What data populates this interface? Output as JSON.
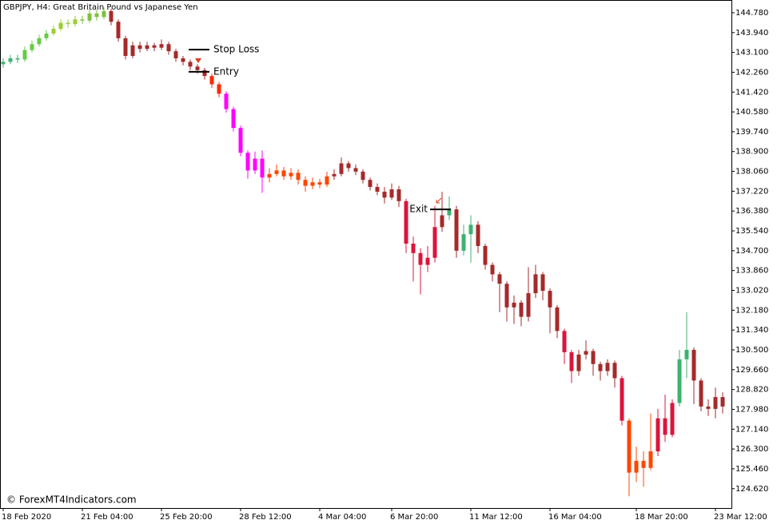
{
  "chart_data": {
    "type": "candlestick",
    "title": "GBPJPY, H4:  Great Britain Pound vs Japanese Yen",
    "watermark": "© ForexMT4Indicators.com",
    "ylim": [
      123.8,
      145.32
    ],
    "yticks": [
      {
        "value": 144.78,
        "label": "144.780"
      },
      {
        "value": 143.94,
        "label": "143.940"
      },
      {
        "value": 143.1,
        "label": "143.100"
      },
      {
        "value": 142.26,
        "label": "142.260"
      },
      {
        "value": 141.42,
        "label": "141.420"
      },
      {
        "value": 140.58,
        "label": "140.580"
      },
      {
        "value": 139.74,
        "label": "139.740"
      },
      {
        "value": 138.9,
        "label": "138.900"
      },
      {
        "value": 138.06,
        "label": "138.060"
      },
      {
        "value": 137.22,
        "label": "137.220"
      },
      {
        "value": 136.38,
        "label": "136.380"
      },
      {
        "value": 135.54,
        "label": "135.540"
      },
      {
        "value": 134.7,
        "label": "134.700"
      },
      {
        "value": 133.86,
        "label": "133.860"
      },
      {
        "value": 133.02,
        "label": "133.020"
      },
      {
        "value": 132.18,
        "label": "132.180"
      },
      {
        "value": 131.34,
        "label": "131.340"
      },
      {
        "value": 130.5,
        "label": "130.500"
      },
      {
        "value": 129.66,
        "label": "129.660"
      },
      {
        "value": 128.82,
        "label": "128.820"
      },
      {
        "value": 127.98,
        "label": "127.980"
      },
      {
        "value": 127.14,
        "label": "127.140"
      },
      {
        "value": 126.3,
        "label": "126.300"
      },
      {
        "value": 125.46,
        "label": "125.460"
      },
      {
        "value": 124.62,
        "label": "124.620"
      }
    ],
    "categories": [
      "18 Feb 2020",
      null,
      null,
      null,
      null,
      null,
      null,
      null,
      null,
      null,
      null,
      "21 Feb 04:00",
      null,
      null,
      null,
      null,
      null,
      null,
      null,
      null,
      null,
      null,
      "25 Feb 20:00",
      null,
      null,
      null,
      null,
      null,
      null,
      null,
      null,
      null,
      null,
      "28 Feb 12:00",
      null,
      null,
      null,
      null,
      null,
      null,
      null,
      null,
      null,
      null,
      "4 Mar 04:00",
      null,
      null,
      null,
      null,
      null,
      null,
      null,
      null,
      null,
      "6 Mar 20:00",
      null,
      null,
      null,
      null,
      null,
      null,
      null,
      null,
      null,
      null,
      "11 Mar 12:00",
      null,
      null,
      null,
      null,
      null,
      null,
      null,
      null,
      null,
      null,
      "16 Mar 04:00",
      null,
      null,
      null,
      null,
      null,
      null,
      null,
      null,
      null,
      null,
      null,
      "18 Mar 20:00",
      null,
      null,
      null,
      null,
      null,
      null,
      null,
      null,
      null,
      null,
      "23 Mar 12:00",
      null
    ],
    "open": [
      142.6,
      142.7,
      142.85,
      142.8,
      143.2,
      143.45,
      143.7,
      143.9,
      144.1,
      144.35,
      144.3,
      144.5,
      144.45,
      144.75,
      144.6,
      144.85,
      144.4,
      143.7,
      142.95,
      143.4,
      143.25,
      143.4,
      143.3,
      143.45,
      143.15,
      142.85,
      142.7,
      142.5,
      142.35,
      142.1,
      141.75,
      141.35,
      140.7,
      139.9,
      138.85,
      138.1,
      138.6,
      137.8,
      137.95,
      138.1,
      137.85,
      138.0,
      137.7,
      137.45,
      137.6,
      137.5,
      137.85,
      137.95,
      138.4,
      138.2,
      138.05,
      137.7,
      137.4,
      137.2,
      136.95,
      137.3,
      136.8,
      135.0,
      134.6,
      134.1,
      134.4,
      135.7,
      136.2,
      136.45,
      134.7,
      135.4,
      135.8,
      134.9,
      134.1,
      133.7,
      133.3,
      132.3,
      132.5,
      131.9,
      132.9,
      133.7,
      133.0,
      132.3,
      131.3,
      130.4,
      129.6,
      130.3,
      130.45,
      129.9,
      129.6,
      129.95,
      129.3,
      127.5,
      125.3,
      125.8,
      125.5,
      126.2,
      127.6,
      126.9,
      128.25,
      130.1,
      130.5,
      129.2,
      128.1,
      128.0,
      128.5
    ],
    "high": [
      142.85,
      143.0,
      143.0,
      143.35,
      143.6,
      143.85,
      144.05,
      144.25,
      144.5,
      144.5,
      144.65,
      144.65,
      144.95,
      144.9,
      145.0,
      144.95,
      144.5,
      143.8,
      143.55,
      143.55,
      143.55,
      143.5,
      143.65,
      143.55,
      143.25,
      142.95,
      142.8,
      142.6,
      142.45,
      142.2,
      141.85,
      141.45,
      140.8,
      140.0,
      138.95,
      138.9,
      138.95,
      138.2,
      138.35,
      138.25,
      138.2,
      138.15,
      137.85,
      137.8,
      137.75,
      138.05,
      138.15,
      138.65,
      138.5,
      138.35,
      138.15,
      137.8,
      137.55,
      137.4,
      137.55,
      137.45,
      136.9,
      135.3,
      134.8,
      134.9,
      136.6,
      137.2,
      137.0,
      136.6,
      135.8,
      136.2,
      135.95,
      135.0,
      134.2,
      133.8,
      133.4,
      132.8,
      132.6,
      134.0,
      134.1,
      133.8,
      133.1,
      132.4,
      131.4,
      130.5,
      130.5,
      130.9,
      130.55,
      130.0,
      130.1,
      130.05,
      129.4,
      127.6,
      126.4,
      126.2,
      127.8,
      128.0,
      128.6,
      128.4,
      130.5,
      132.1,
      130.6,
      129.3,
      128.4,
      128.9,
      128.7
    ],
    "low": [
      142.45,
      142.6,
      142.65,
      142.7,
      143.1,
      143.35,
      143.6,
      143.8,
      144.0,
      144.15,
      144.2,
      144.3,
      144.35,
      144.45,
      144.5,
      144.25,
      143.55,
      142.8,
      142.85,
      143.1,
      143.15,
      143.15,
      143.2,
      143.0,
      142.7,
      142.55,
      142.35,
      142.2,
      141.95,
      141.6,
      141.2,
      140.55,
      139.75,
      138.7,
      137.75,
      137.95,
      137.15,
      137.6,
      137.85,
      137.7,
      137.7,
      137.5,
      137.2,
      137.3,
      137.35,
      137.4,
      137.7,
      137.85,
      138.05,
      137.9,
      137.55,
      137.25,
      137.05,
      136.7,
      136.85,
      136.55,
      134.6,
      133.4,
      132.85,
      133.8,
      134.2,
      135.5,
      136.0,
      134.4,
      134.5,
      134.2,
      134.6,
      133.9,
      133.4,
      132.1,
      131.7,
      131.6,
      131.5,
      131.7,
      132.7,
      132.6,
      131.2,
      131.0,
      129.9,
      129.1,
      129.4,
      130.1,
      129.4,
      129.2,
      129.4,
      128.9,
      127.3,
      124.3,
      124.9,
      124.7,
      125.4,
      126.0,
      126.6,
      126.8,
      128.1,
      129.3,
      128.2,
      127.9,
      127.7,
      127.6,
      127.8
    ],
    "close": [
      142.7,
      142.85,
      142.8,
      143.2,
      143.45,
      143.7,
      143.9,
      144.1,
      144.35,
      144.3,
      144.5,
      144.45,
      144.75,
      144.6,
      144.85,
      144.4,
      143.7,
      142.95,
      143.4,
      143.25,
      143.4,
      143.3,
      143.45,
      143.15,
      142.85,
      142.7,
      142.5,
      142.35,
      142.1,
      141.75,
      141.35,
      140.7,
      139.9,
      138.85,
      138.1,
      138.6,
      137.8,
      137.95,
      138.1,
      137.85,
      138.0,
      137.7,
      137.45,
      137.6,
      137.5,
      137.85,
      137.95,
      138.4,
      138.2,
      138.05,
      137.7,
      137.4,
      137.2,
      136.95,
      137.3,
      136.8,
      135.0,
      134.6,
      134.1,
      134.4,
      135.7,
      136.2,
      136.45,
      134.7,
      135.4,
      135.8,
      134.9,
      134.1,
      133.7,
      133.3,
      132.3,
      132.5,
      131.9,
      132.9,
      133.7,
      133.0,
      132.3,
      131.3,
      130.4,
      129.6,
      130.3,
      130.45,
      129.9,
      129.6,
      129.95,
      129.3,
      127.5,
      125.3,
      125.8,
      125.5,
      126.2,
      127.6,
      126.9,
      128.25,
      130.1,
      130.5,
      129.2,
      128.1,
      128.0,
      128.5,
      128.1
    ],
    "colors": [
      "#3cb371",
      "#3cb371",
      "#3cb371",
      "#66cc44",
      "#66cc44",
      "#66cc44",
      "#66cc44",
      "#9acd32",
      "#9acd32",
      "#9acd32",
      "#9acd32",
      "#7fbf3f",
      "#7fbf3f",
      "#7fbf3f",
      "#7fbf3f",
      "#a52a2a",
      "#a52a2a",
      "#a52a2a",
      "#a52a2a",
      "#a52a2a",
      "#a52a2a",
      "#a52a2a",
      "#a52a2a",
      "#a52a2a",
      "#a52a2a",
      "#a52a2a",
      "#a52a2a",
      "#a52a2a",
      "#a52a2a",
      "#ff2a00",
      "#ff2a00",
      "#ff00ff",
      "#ff00ff",
      "#ff00ff",
      "#ff00ff",
      "#ff00ff",
      "#ff00ff",
      "#ff4500",
      "#ff4500",
      "#ff4500",
      "#ff4500",
      "#ff4500",
      "#ff4500",
      "#ff4500",
      "#ff4500",
      "#ff4500",
      "#a52a2a",
      "#a52a2a",
      "#a52a2a",
      "#a52a2a",
      "#a52a2a",
      "#a52a2a",
      "#a52a2a",
      "#a52a2a",
      "#a52a2a",
      "#a52a2a",
      "#dc143c",
      "#dc143c",
      "#dc143c",
      "#dc143c",
      "#dc143c",
      "#a52a2a",
      "#3cb371",
      "#a52a2a",
      "#3cb371",
      "#3cb371",
      "#a52a2a",
      "#a52a2a",
      "#a52a2a",
      "#a52a2a",
      "#a52a2a",
      "#a52a2a",
      "#a52a2a",
      "#a52a2a",
      "#a52a2a",
      "#a52a2a",
      "#a52a2a",
      "#a52a2a",
      "#dc143c",
      "#dc143c",
      "#a52a2a",
      "#a52a2a",
      "#a52a2a",
      "#a52a2a",
      "#a52a2a",
      "#a52a2a",
      "#dc143c",
      "#ff4500",
      "#ff4500",
      "#ff4500",
      "#ff4500",
      "#dc143c",
      "#dc143c",
      "#dc143c",
      "#3cb371",
      "#3cb371",
      "#a52a2a",
      "#a52a2a",
      "#a52a2a",
      "#a52a2a",
      "#a52a2a"
    ],
    "annotations": [
      {
        "text": "Stop Loss",
        "value": 143.22
      },
      {
        "text": "Entry",
        "value": 142.28
      },
      {
        "text": "Exit",
        "value": 136.45
      }
    ]
  }
}
